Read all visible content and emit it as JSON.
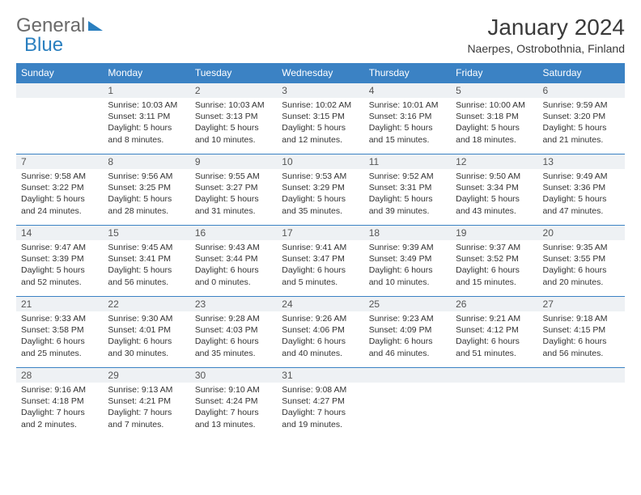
{
  "logo": {
    "text1": "General",
    "text2": "Blue"
  },
  "title": "January 2024",
  "location": "Naerpes, Ostrobothnia, Finland",
  "colors": {
    "header_bg": "#3b82c4",
    "header_fg": "#ffffff",
    "daynum_bg": "#eef1f4",
    "row_border": "#3b82c4",
    "text": "#333333"
  },
  "weekdays": [
    "Sunday",
    "Monday",
    "Tuesday",
    "Wednesday",
    "Thursday",
    "Friday",
    "Saturday"
  ],
  "weeks": [
    [
      null,
      {
        "n": "1",
        "sr": "10:03 AM",
        "ss": "3:11 PM",
        "dl": "5 hours and 8 minutes."
      },
      {
        "n": "2",
        "sr": "10:03 AM",
        "ss": "3:13 PM",
        "dl": "5 hours and 10 minutes."
      },
      {
        "n": "3",
        "sr": "10:02 AM",
        "ss": "3:15 PM",
        "dl": "5 hours and 12 minutes."
      },
      {
        "n": "4",
        "sr": "10:01 AM",
        "ss": "3:16 PM",
        "dl": "5 hours and 15 minutes."
      },
      {
        "n": "5",
        "sr": "10:00 AM",
        "ss": "3:18 PM",
        "dl": "5 hours and 18 minutes."
      },
      {
        "n": "6",
        "sr": "9:59 AM",
        "ss": "3:20 PM",
        "dl": "5 hours and 21 minutes."
      }
    ],
    [
      {
        "n": "7",
        "sr": "9:58 AM",
        "ss": "3:22 PM",
        "dl": "5 hours and 24 minutes."
      },
      {
        "n": "8",
        "sr": "9:56 AM",
        "ss": "3:25 PM",
        "dl": "5 hours and 28 minutes."
      },
      {
        "n": "9",
        "sr": "9:55 AM",
        "ss": "3:27 PM",
        "dl": "5 hours and 31 minutes."
      },
      {
        "n": "10",
        "sr": "9:53 AM",
        "ss": "3:29 PM",
        "dl": "5 hours and 35 minutes."
      },
      {
        "n": "11",
        "sr": "9:52 AM",
        "ss": "3:31 PM",
        "dl": "5 hours and 39 minutes."
      },
      {
        "n": "12",
        "sr": "9:50 AM",
        "ss": "3:34 PM",
        "dl": "5 hours and 43 minutes."
      },
      {
        "n": "13",
        "sr": "9:49 AM",
        "ss": "3:36 PM",
        "dl": "5 hours and 47 minutes."
      }
    ],
    [
      {
        "n": "14",
        "sr": "9:47 AM",
        "ss": "3:39 PM",
        "dl": "5 hours and 52 minutes."
      },
      {
        "n": "15",
        "sr": "9:45 AM",
        "ss": "3:41 PM",
        "dl": "5 hours and 56 minutes."
      },
      {
        "n": "16",
        "sr": "9:43 AM",
        "ss": "3:44 PM",
        "dl": "6 hours and 0 minutes."
      },
      {
        "n": "17",
        "sr": "9:41 AM",
        "ss": "3:47 PM",
        "dl": "6 hours and 5 minutes."
      },
      {
        "n": "18",
        "sr": "9:39 AM",
        "ss": "3:49 PM",
        "dl": "6 hours and 10 minutes."
      },
      {
        "n": "19",
        "sr": "9:37 AM",
        "ss": "3:52 PM",
        "dl": "6 hours and 15 minutes."
      },
      {
        "n": "20",
        "sr": "9:35 AM",
        "ss": "3:55 PM",
        "dl": "6 hours and 20 minutes."
      }
    ],
    [
      {
        "n": "21",
        "sr": "9:33 AM",
        "ss": "3:58 PM",
        "dl": "6 hours and 25 minutes."
      },
      {
        "n": "22",
        "sr": "9:30 AM",
        "ss": "4:01 PM",
        "dl": "6 hours and 30 minutes."
      },
      {
        "n": "23",
        "sr": "9:28 AM",
        "ss": "4:03 PM",
        "dl": "6 hours and 35 minutes."
      },
      {
        "n": "24",
        "sr": "9:26 AM",
        "ss": "4:06 PM",
        "dl": "6 hours and 40 minutes."
      },
      {
        "n": "25",
        "sr": "9:23 AM",
        "ss": "4:09 PM",
        "dl": "6 hours and 46 minutes."
      },
      {
        "n": "26",
        "sr": "9:21 AM",
        "ss": "4:12 PM",
        "dl": "6 hours and 51 minutes."
      },
      {
        "n": "27",
        "sr": "9:18 AM",
        "ss": "4:15 PM",
        "dl": "6 hours and 56 minutes."
      }
    ],
    [
      {
        "n": "28",
        "sr": "9:16 AM",
        "ss": "4:18 PM",
        "dl": "7 hours and 2 minutes."
      },
      {
        "n": "29",
        "sr": "9:13 AM",
        "ss": "4:21 PM",
        "dl": "7 hours and 7 minutes."
      },
      {
        "n": "30",
        "sr": "9:10 AM",
        "ss": "4:24 PM",
        "dl": "7 hours and 13 minutes."
      },
      {
        "n": "31",
        "sr": "9:08 AM",
        "ss": "4:27 PM",
        "dl": "7 hours and 19 minutes."
      },
      null,
      null,
      null
    ]
  ],
  "labels": {
    "sunrise": "Sunrise:",
    "sunset": "Sunset:",
    "daylight": "Daylight:"
  }
}
